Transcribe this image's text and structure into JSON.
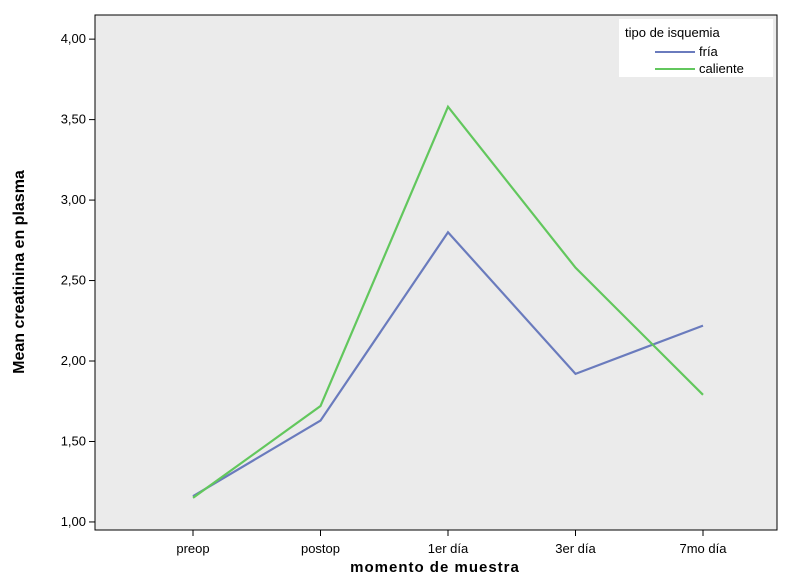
{
  "chart_data": {
    "type": "line",
    "title": "",
    "xlabel": "momento de muestra",
    "ylabel": "Mean creatinina en plasma",
    "categories": [
      "preop",
      "postop",
      "1er día",
      "3er día",
      "7mo día"
    ],
    "ylim": [
      0.95,
      4.15
    ],
    "yticks": [
      "1,00",
      "1,50",
      "2,00",
      "2,50",
      "3,00",
      "3,50",
      "4,00"
    ],
    "yticks_values": [
      1.0,
      1.5,
      2.0,
      2.5,
      3.0,
      3.5,
      4.0
    ],
    "grid": false,
    "legend_title": "tipo de isquemia",
    "legend_position": "top-right",
    "series": [
      {
        "name": "fría",
        "color": "#6a7bbd",
        "values": [
          1.16,
          1.63,
          2.8,
          1.92,
          2.22
        ]
      },
      {
        "name": "caliente",
        "color": "#62c75d",
        "values": [
          1.15,
          1.72,
          3.58,
          2.58,
          1.79
        ]
      }
    ],
    "plot_background": "#ebebeb"
  }
}
